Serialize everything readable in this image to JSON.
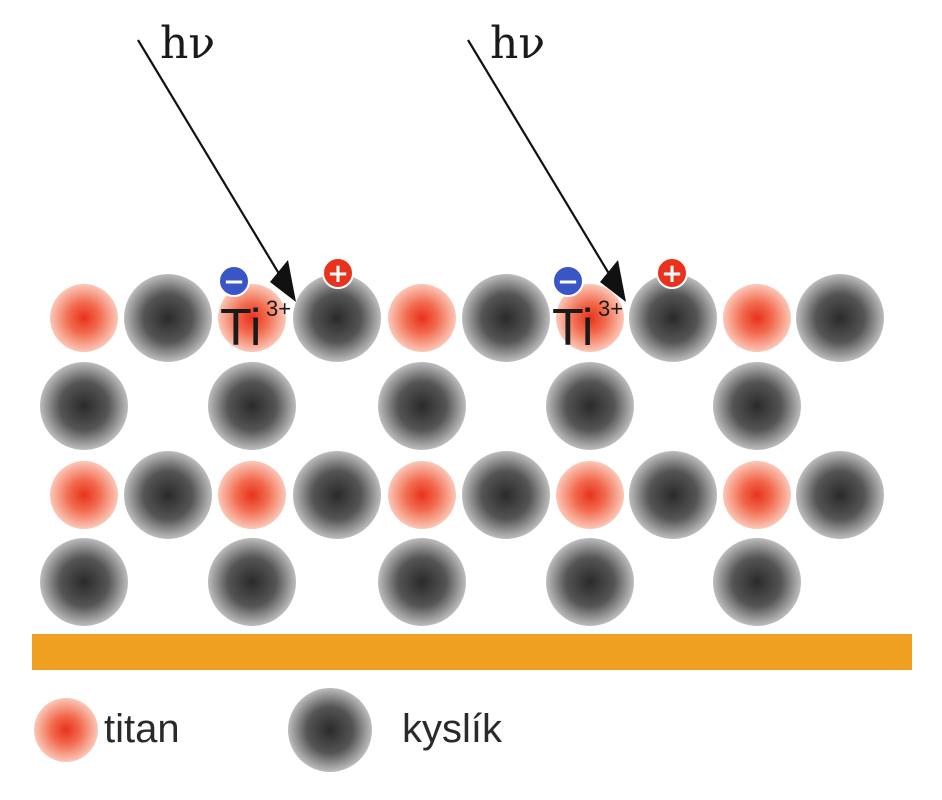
{
  "diagram": {
    "photon_label": "hν",
    "ti_ion_label": "Ti",
    "ti_ion_charge": "3+",
    "electron_sign": "−",
    "hole_sign": "+",
    "legend": {
      "titanium_label": "titan",
      "oxygen_label": "kyslík"
    },
    "colors": {
      "titanium": "#f26a4e",
      "oxygen": "#3a3a3a",
      "substrate": "#f0a020",
      "electron": "#3a55c8",
      "hole": "#e8321e"
    }
  }
}
